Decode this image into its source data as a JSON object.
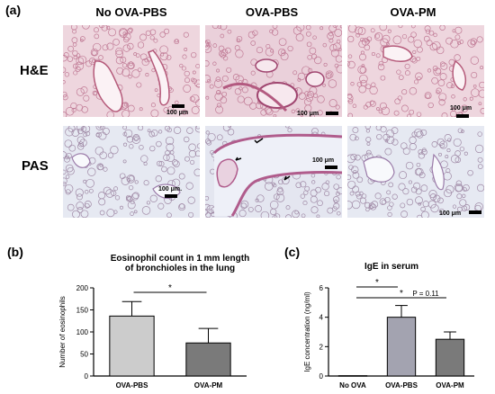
{
  "figure": {
    "panel_a_label": "(a)",
    "panel_b_label": "(b)",
    "panel_c_label": "(c)",
    "columns": [
      "No OVA-PBS",
      "OVA-PBS",
      "OVA-PM"
    ],
    "rows": [
      "H&E",
      "PAS"
    ],
    "scale_label": "100 μm",
    "scale_label_alt": "100 μm."
  },
  "chart_data": [
    {
      "type": "bar",
      "title": "Eosinophil count in 1 mm length of bronchioles in the lung",
      "title_lines": [
        "Eosinophil count in 1 mm length",
        "of bronchioles in the lung"
      ],
      "xlabel": "",
      "ylabel": "Number of eosinophils",
      "categories": [
        "OVA-PBS",
        "OVA-PM"
      ],
      "values": [
        136,
        75
      ],
      "errors": [
        33,
        33
      ],
      "ylim": [
        0,
        200
      ],
      "yticks": [
        0,
        50,
        100,
        150,
        200
      ],
      "bar_colors": [
        "#cccccc",
        "#7a7a7a"
      ],
      "annotations": [
        {
          "from": 0,
          "to": 1,
          "text": "*"
        }
      ]
    },
    {
      "type": "bar",
      "title": "IgE in serum",
      "xlabel": "",
      "ylabel": "IgE concentration (ng/ml)",
      "categories": [
        "No OVA",
        "OVA-PBS",
        "OVA-PM"
      ],
      "values": [
        0.02,
        4.0,
        2.5
      ],
      "errors": [
        0,
        0.8,
        0.5
      ],
      "ylim": [
        0,
        6
      ],
      "yticks": [
        0,
        2,
        4,
        6
      ],
      "bar_colors": [
        "#ffffff",
        "#a3a3b0",
        "#7a7a7a"
      ],
      "annotations": [
        {
          "from": 0,
          "to": 1,
          "text": "*"
        },
        {
          "from": 0,
          "to": 2,
          "text": "*"
        },
        {
          "from": 1,
          "to": 2,
          "text": "P = 0.11"
        }
      ]
    }
  ]
}
